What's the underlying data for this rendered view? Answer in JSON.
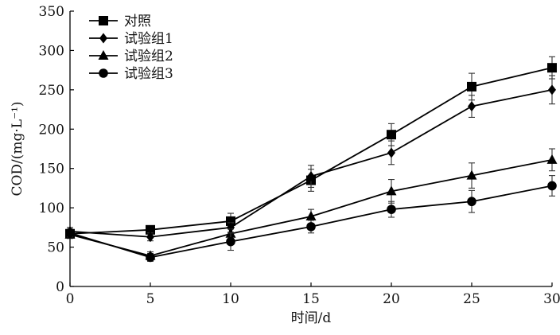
{
  "chart_data": {
    "type": "line",
    "xlabel": "时间/d",
    "ylabel": "COD/(mg·L⁻¹)",
    "x": [
      0,
      5,
      10,
      15,
      20,
      25,
      30
    ],
    "xlim": [
      0,
      30
    ],
    "ylim": [
      0,
      350
    ],
    "xticks": [
      0,
      5,
      10,
      15,
      20,
      25,
      30
    ],
    "yticks": [
      0,
      50,
      100,
      150,
      200,
      250,
      300,
      350
    ],
    "grid": false,
    "legend_position": "top-left",
    "series": [
      {
        "name": "对照",
        "marker": "square",
        "values": [
          67,
          72,
          83,
          135,
          193,
          254,
          278
        ],
        "errors": [
          5,
          4,
          10,
          14,
          14,
          17,
          14
        ]
      },
      {
        "name": "试验组1",
        "marker": "diamond",
        "values": [
          70,
          63,
          75,
          140,
          170,
          229,
          250
        ],
        "errors": [
          5,
          5,
          6,
          14,
          15,
          14,
          18
        ]
      },
      {
        "name": "试验组2",
        "marker": "triangle",
        "values": [
          66,
          39,
          67,
          89,
          121,
          141,
          161
        ],
        "errors": [
          5,
          5,
          6,
          9,
          15,
          16,
          14
        ]
      },
      {
        "name": "试验组3",
        "marker": "circle",
        "values": [
          68,
          37,
          57,
          76,
          98,
          108,
          128
        ],
        "errors": [
          5,
          5,
          11,
          8,
          10,
          14,
          13
        ]
      }
    ]
  }
}
